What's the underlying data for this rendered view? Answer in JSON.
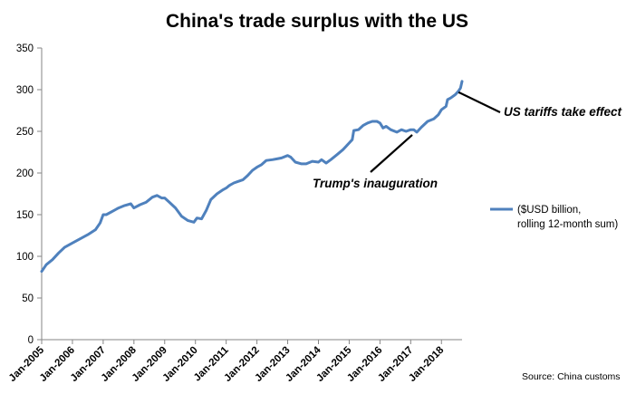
{
  "chart_data": {
    "type": "line",
    "title": "China's trade surplus with the US",
    "xlabel": "",
    "ylabel": "",
    "ylim": [
      0,
      350
    ],
    "yticks": [
      0,
      50,
      100,
      150,
      200,
      250,
      300,
      350
    ],
    "x_start_year": 2005,
    "x_end_year": 2018.67,
    "xticks": [
      {
        "label": "Jan-2005",
        "year": 2005
      },
      {
        "label": "Jan-2006",
        "year": 2006
      },
      {
        "label": "Jan-2007",
        "year": 2007
      },
      {
        "label": "Jan-2008",
        "year": 2008
      },
      {
        "label": "Jan-2009",
        "year": 2009
      },
      {
        "label": "Jan-2010",
        "year": 2010
      },
      {
        "label": "Jan-2011",
        "year": 2011
      },
      {
        "label": "Jan-2012",
        "year": 2012
      },
      {
        "label": "Jan-2013",
        "year": 2013
      },
      {
        "label": "Jan-2014",
        "year": 2014
      },
      {
        "label": "Jan-2015",
        "year": 2015
      },
      {
        "label": "Jan-2016",
        "year": 2016
      },
      {
        "label": "Jan-2017",
        "year": 2017
      },
      {
        "label": "Jan-2018",
        "year": 2018
      }
    ],
    "series": [
      {
        "name": "($USD billion, rolling 12-month sum)",
        "color": "#4f81bd",
        "points": [
          [
            2005.0,
            82
          ],
          [
            2005.15,
            90
          ],
          [
            2005.35,
            96
          ],
          [
            2005.55,
            104
          ],
          [
            2005.75,
            111
          ],
          [
            2006.0,
            116
          ],
          [
            2006.25,
            121
          ],
          [
            2006.5,
            126
          ],
          [
            2006.75,
            132
          ],
          [
            2006.9,
            140
          ],
          [
            2007.0,
            150
          ],
          [
            2007.1,
            150
          ],
          [
            2007.3,
            154
          ],
          [
            2007.5,
            158
          ],
          [
            2007.7,
            161
          ],
          [
            2007.9,
            163
          ],
          [
            2008.0,
            158
          ],
          [
            2008.2,
            162
          ],
          [
            2008.4,
            165
          ],
          [
            2008.6,
            171
          ],
          [
            2008.75,
            173
          ],
          [
            2008.9,
            170
          ],
          [
            2009.0,
            170
          ],
          [
            2009.15,
            165
          ],
          [
            2009.35,
            158
          ],
          [
            2009.55,
            148
          ],
          [
            2009.75,
            143
          ],
          [
            2009.95,
            141
          ],
          [
            2010.05,
            146
          ],
          [
            2010.2,
            145
          ],
          [
            2010.35,
            155
          ],
          [
            2010.5,
            168
          ],
          [
            2010.7,
            175
          ],
          [
            2010.9,
            180
          ],
          [
            2011.0,
            182
          ],
          [
            2011.1,
            185
          ],
          [
            2011.25,
            188
          ],
          [
            2011.4,
            190
          ],
          [
            2011.55,
            192
          ],
          [
            2011.7,
            197
          ],
          [
            2011.85,
            203
          ],
          [
            2012.0,
            207
          ],
          [
            2012.15,
            210
          ],
          [
            2012.3,
            215
          ],
          [
            2012.5,
            216
          ],
          [
            2012.65,
            217
          ],
          [
            2012.8,
            218
          ],
          [
            2013.0,
            221
          ],
          [
            2013.1,
            219
          ],
          [
            2013.25,
            213
          ],
          [
            2013.45,
            211
          ],
          [
            2013.6,
            211
          ],
          [
            2013.8,
            214
          ],
          [
            2014.0,
            213
          ],
          [
            2014.1,
            216
          ],
          [
            2014.25,
            212
          ],
          [
            2014.4,
            216
          ],
          [
            2014.6,
            222
          ],
          [
            2014.8,
            228
          ],
          [
            2015.0,
            236
          ],
          [
            2015.1,
            240
          ],
          [
            2015.15,
            251
          ],
          [
            2015.3,
            252
          ],
          [
            2015.45,
            257
          ],
          [
            2015.6,
            260
          ],
          [
            2015.75,
            262
          ],
          [
            2015.9,
            262
          ],
          [
            2016.0,
            260
          ],
          [
            2016.1,
            254
          ],
          [
            2016.2,
            256
          ],
          [
            2016.35,
            252
          ],
          [
            2016.55,
            249
          ],
          [
            2016.7,
            252
          ],
          [
            2016.85,
            250
          ],
          [
            2017.0,
            252
          ],
          [
            2017.1,
            252
          ],
          [
            2017.2,
            249
          ],
          [
            2017.35,
            255
          ],
          [
            2017.55,
            262
          ],
          [
            2017.75,
            265
          ],
          [
            2017.9,
            270
          ],
          [
            2018.0,
            276
          ],
          [
            2018.15,
            280
          ],
          [
            2018.2,
            288
          ],
          [
            2018.3,
            290
          ],
          [
            2018.45,
            294
          ],
          [
            2018.55,
            298
          ],
          [
            2018.62,
            302
          ],
          [
            2018.67,
            310
          ]
        ]
      }
    ],
    "legend": {
      "position": "right",
      "line1": "($USD billion,",
      "line2": "rolling 12-month sum)"
    },
    "annotations": [
      {
        "text": "Trump's inauguration",
        "target_year": 2017.05,
        "target_value": 249
      },
      {
        "text": "US tariffs take effect",
        "target_year": 2018.5,
        "target_value": 298
      }
    ],
    "source": "Source: China customs",
    "grid": false
  }
}
